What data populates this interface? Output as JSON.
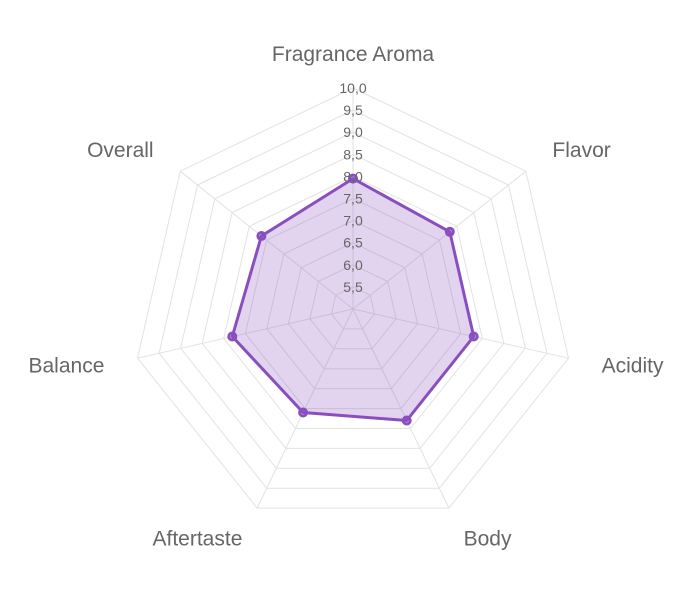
{
  "chart_data": {
    "type": "radar",
    "axes": [
      "Fragrance Aroma",
      "Flavor",
      "Acidity",
      "Body",
      "Aftertaste",
      "Balance",
      "Overall"
    ],
    "ticks": [
      "5,5",
      "6,0",
      "6,5",
      "7,0",
      "7,5",
      "8,0",
      "8,5",
      "9,0",
      "9,5",
      "10,0"
    ],
    "range": [
      5,
      10
    ],
    "series": [
      {
        "values": [
          7.95,
          7.8,
          7.8,
          7.8,
          7.6,
          7.8,
          7.65
        ],
        "stroke": "#8a4fbf",
        "fill": "#8a4fbf",
        "fill_opacity": 0.25
      }
    ],
    "grid": true,
    "legend": "none"
  }
}
